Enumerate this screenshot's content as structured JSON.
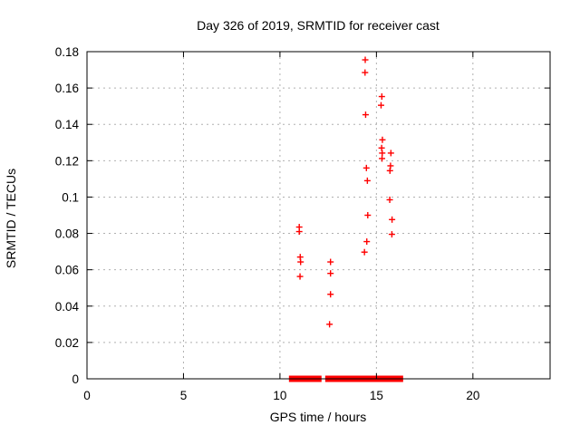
{
  "figure": {
    "background": "#ffffff",
    "border_color": "#000000",
    "grid_color": "#b0b0b0"
  },
  "chart_data": {
    "type": "scatter",
    "title": "Day 326 of 2019, SRMTID for receiver cast",
    "xlabel": "GPS time / hours",
    "ylabel": "SRMTID / TECUs",
    "xlim": [
      0,
      24
    ],
    "ylim": [
      0,
      0.18
    ],
    "xticks": {
      "values": [
        0,
        5,
        10,
        15,
        20
      ],
      "labels": [
        "0",
        "5",
        "10",
        "15",
        "20"
      ]
    },
    "yticks": {
      "values": [
        0,
        0.02,
        0.04,
        0.06,
        0.08,
        0.1,
        0.12,
        0.14,
        0.16,
        0.18
      ],
      "labels": [
        "0",
        "0.02",
        "0.04",
        "0.06",
        "0.08",
        "0.1",
        "0.12",
        "0.14",
        "0.16",
        "0.18"
      ]
    },
    "grid": true,
    "legend": "none",
    "marker": {
      "shape": "plus",
      "color": "#ff0000",
      "size": 7
    },
    "series": [
      {
        "name": "SRMTID",
        "points": [
          [
            11.0,
            0.0835
          ],
          [
            11.0,
            0.081
          ],
          [
            11.05,
            0.067
          ],
          [
            11.07,
            0.0643
          ],
          [
            11.04,
            0.0563
          ],
          [
            12.62,
            0.0643
          ],
          [
            12.62,
            0.058
          ],
          [
            12.62,
            0.0465
          ],
          [
            12.57,
            0.03
          ],
          [
            14.42,
            0.1755
          ],
          [
            14.41,
            0.1685
          ],
          [
            14.44,
            0.1453
          ],
          [
            14.48,
            0.116
          ],
          [
            14.53,
            0.109
          ],
          [
            14.55,
            0.09
          ],
          [
            14.5,
            0.0755
          ],
          [
            14.38,
            0.0697
          ],
          [
            15.28,
            0.1553
          ],
          [
            15.24,
            0.1505
          ],
          [
            15.31,
            0.1315
          ],
          [
            15.27,
            0.127
          ],
          [
            15.3,
            0.1242
          ],
          [
            15.29,
            0.1212
          ],
          [
            15.75,
            0.1242
          ],
          [
            15.73,
            0.1172
          ],
          [
            15.7,
            0.1145
          ],
          [
            15.69,
            0.0985
          ],
          [
            15.81,
            0.0876
          ],
          [
            15.8,
            0.0795
          ]
        ]
      }
    ],
    "baseline_value": 0,
    "baseline_segments_hours": [
      [
        10.63,
        11.16
      ],
      [
        11.25,
        11.38
      ],
      [
        11.47,
        11.66
      ],
      [
        11.9,
        11.99
      ],
      [
        12.51,
        12.93
      ],
      [
        13.01,
        13.29
      ],
      [
        13.35,
        13.59
      ],
      [
        13.67,
        14.37
      ],
      [
        14.47,
        15.83
      ],
      [
        15.94,
        16.22
      ]
    ]
  }
}
